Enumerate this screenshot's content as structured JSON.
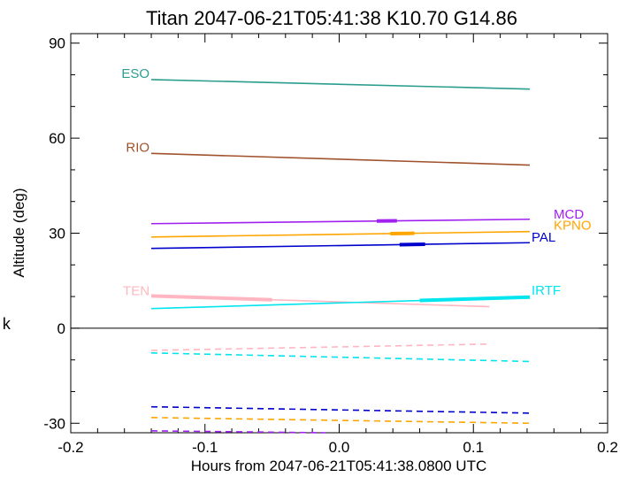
{
  "chart_data": {
    "type": "line",
    "title": "Titan 2047-06-21T05:41:38  K10.70  G14.86",
    "xlabel": "Hours from 2047-06-21T05:41:38.0800 UTC",
    "ylabel": "Altitude (deg)",
    "side_label": "k",
    "xlim": [
      -0.2,
      0.2
    ],
    "ylim": [
      -33,
      93
    ],
    "x_ticks": [
      -0.2,
      -0.1,
      0.0,
      0.1,
      0.2
    ],
    "x_tick_labels": [
      "-0.2",
      "-0.1",
      "0.0",
      "0.1",
      "0.2"
    ],
    "y_ticks": [
      -30,
      0,
      30,
      60,
      90
    ],
    "y_tick_labels": [
      "-30",
      "0",
      "30",
      "60",
      "90"
    ],
    "zero_line": true,
    "grid": false,
    "series": [
      {
        "name": "ESO",
        "color": "#2a9d8f",
        "style": "solid",
        "x": [
          -0.14,
          0.142
        ],
        "y": [
          78.5,
          75.5
        ],
        "label_side": "left"
      },
      {
        "name": "RIO",
        "color": "#a0522d",
        "style": "solid",
        "x": [
          -0.14,
          0.142
        ],
        "y": [
          55.2,
          51.5
        ],
        "label_side": "left"
      },
      {
        "name": "MCD",
        "color": "#a020f0",
        "style": "solid",
        "x": [
          -0.14,
          0.142
        ],
        "y": [
          33.0,
          34.4
        ],
        "label_side": "right",
        "highlight": [
          0.028,
          0.043
        ]
      },
      {
        "name": "KPNO",
        "color": "#ffa500",
        "style": "solid",
        "x": [
          -0.14,
          0.142
        ],
        "y": [
          28.8,
          30.5
        ],
        "label_side": "right",
        "highlight": [
          0.038,
          0.056
        ]
      },
      {
        "name": "PAL",
        "color": "#0000cd",
        "style": "solid",
        "x": [
          -0.14,
          0.142
        ],
        "y": [
          25.2,
          27.0
        ],
        "label_side": "right",
        "highlight": [
          0.045,
          0.064
        ]
      },
      {
        "name": "TEN",
        "color": "#ffb6c1",
        "style": "solid",
        "x": [
          -0.14,
          0.112
        ],
        "y": [
          10.2,
          6.8
        ],
        "label_side": "left",
        "highlight": [
          -0.14,
          -0.05
        ]
      },
      {
        "name": "IRTF",
        "color": "#00e5ee",
        "style": "solid",
        "x": [
          -0.14,
          0.142
        ],
        "y": [
          6.2,
          9.8
        ],
        "label_side": "right",
        "highlight": [
          0.06,
          0.142
        ]
      },
      {
        "name": "",
        "color": "#ffb6c1",
        "style": "dashed",
        "x": [
          -0.14,
          0.112
        ],
        "y": [
          -7.0,
          -5.0
        ]
      },
      {
        "name": "",
        "color": "#00e5ee",
        "style": "dashed",
        "x": [
          -0.14,
          0.142
        ],
        "y": [
          -7.8,
          -10.5
        ]
      },
      {
        "name": "",
        "color": "#0000cd",
        "style": "dashed",
        "x": [
          -0.14,
          0.142
        ],
        "y": [
          -24.8,
          -26.8
        ]
      },
      {
        "name": "",
        "color": "#ffa500",
        "style": "dashed",
        "x": [
          -0.14,
          0.142
        ],
        "y": [
          -28.2,
          -30.0
        ]
      },
      {
        "name": "",
        "color": "#a020f0",
        "style": "dashed",
        "x": [
          -0.14,
          -0.01
        ],
        "y": [
          -32.4,
          -33.0
        ]
      }
    ]
  }
}
